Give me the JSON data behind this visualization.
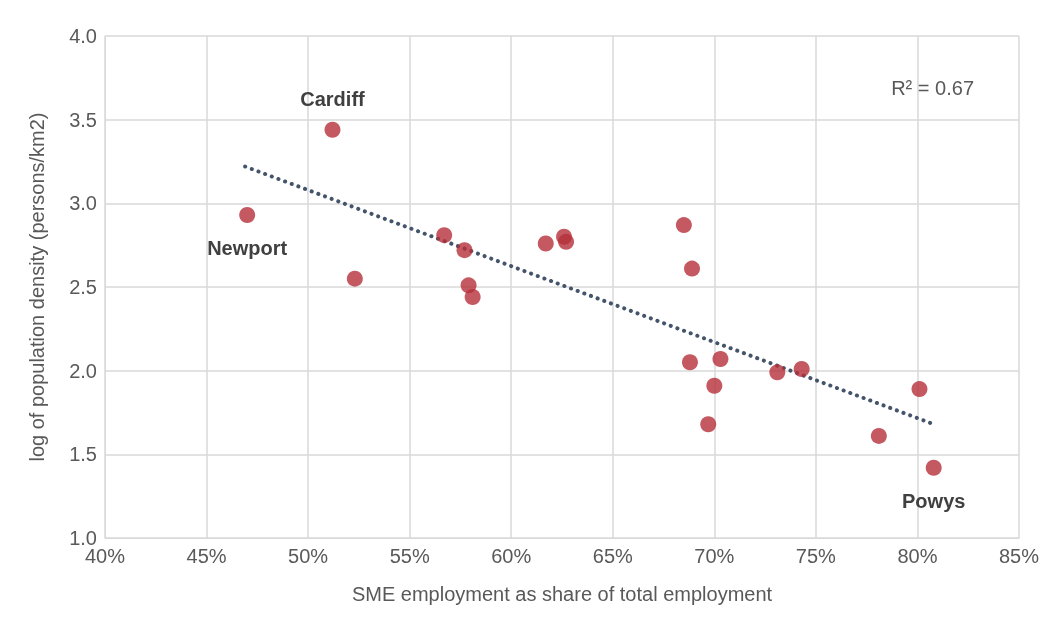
{
  "chart_data": {
    "type": "scatter",
    "xlabel": "SME employment as share of total employment",
    "ylabel": "log of population density (persons/km2)",
    "xlim": [
      40,
      85
    ],
    "xticks": [
      {
        "value": 40,
        "label": "40%"
      },
      {
        "value": 45,
        "label": "45%"
      },
      {
        "value": 50,
        "label": "50%"
      },
      {
        "value": 55,
        "label": "55%"
      },
      {
        "value": 60,
        "label": "60%"
      },
      {
        "value": 65,
        "label": "65%"
      },
      {
        "value": 70,
        "label": "70%"
      },
      {
        "value": 75,
        "label": "75%"
      },
      {
        "value": 80,
        "label": "80%"
      },
      {
        "value": 85,
        "label": "85%"
      }
    ],
    "ylim": [
      1,
      4
    ],
    "yticks": [
      {
        "value": 1,
        "label": "1.0"
      },
      {
        "value": 1.5,
        "label": "1.5"
      },
      {
        "value": 2,
        "label": "2.0"
      },
      {
        "value": 2.5,
        "label": "2.5"
      },
      {
        "value": 3,
        "label": "3.0"
      },
      {
        "value": 3.5,
        "label": "3.5"
      },
      {
        "value": 4,
        "label": "4.0"
      }
    ],
    "grid": true,
    "series": [
      {
        "color": "#b5303a",
        "marker": "circle",
        "x": [
          51.2,
          47.0,
          52.3,
          56.7,
          57.7,
          57.9,
          58.1,
          61.7,
          62.6,
          62.7,
          68.5,
          68.9,
          68.8,
          70.3,
          70.0,
          69.7,
          73.1,
          74.3,
          80.1,
          78.1,
          80.8
        ],
        "values": [
          3.44,
          2.93,
          2.55,
          2.81,
          2.72,
          2.51,
          2.44,
          2.76,
          2.8,
          2.77,
          2.87,
          2.61,
          2.05,
          2.07,
          1.91,
          1.68,
          1.99,
          2.01,
          1.89,
          1.61,
          1.42
        ]
      },
      {
        "type": "line",
        "color": "#44546a",
        "marker": "none",
        "line_style": "dotted",
        "x": [
          46.9,
          80.8
        ],
        "values": [
          3.22,
          1.68
        ]
      }
    ],
    "annotations": [
      {
        "text": "Cardiff",
        "x": 51.2,
        "y": 3.44
      },
      {
        "text": "Newport",
        "x": 47.0,
        "y": 2.93
      },
      {
        "text": "Powys",
        "x": 80.8,
        "y": 1.42
      },
      "R² = 0.67"
    ]
  }
}
